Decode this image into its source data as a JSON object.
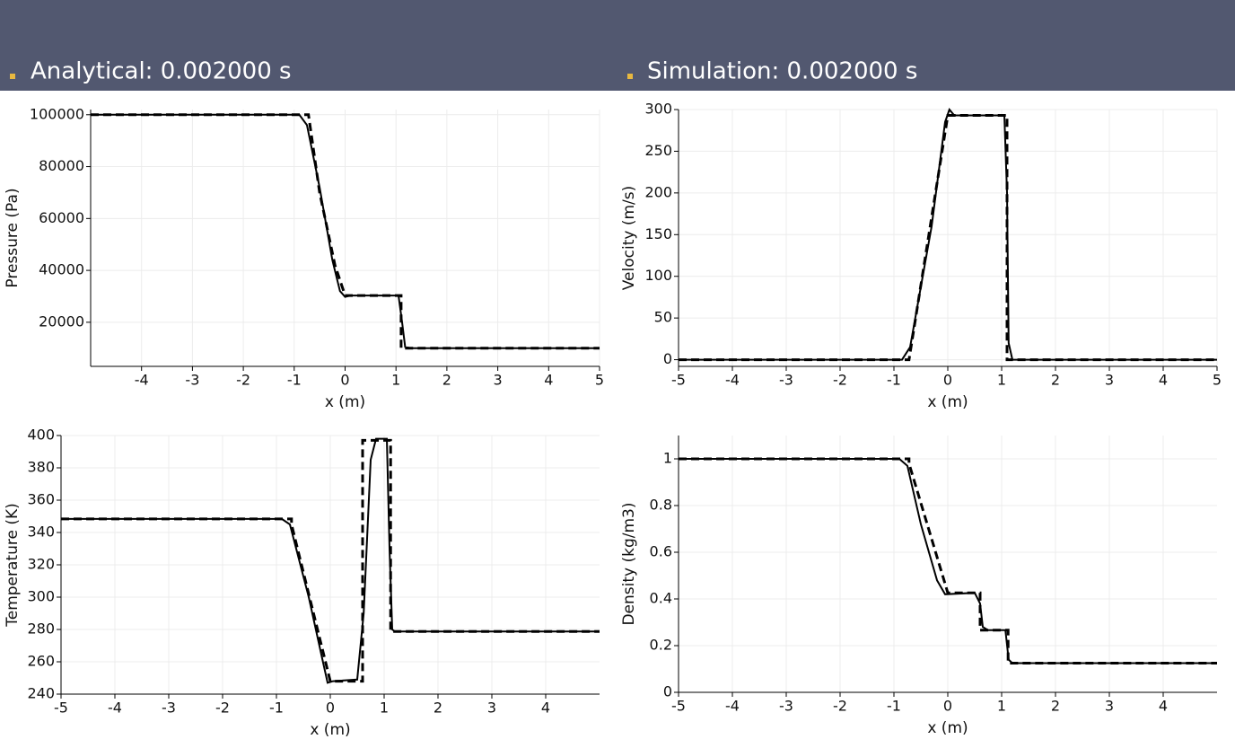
{
  "header": {
    "left": "Analytical: 0.002000 s",
    "right": "Simulation: 0.002000 s"
  },
  "chart_data": [
    {
      "type": "line",
      "xlabel": "x (m)",
      "ylabel": "Pressure (Pa)",
      "xlim": [
        -5,
        5
      ],
      "ylim": [
        3000,
        102000
      ],
      "xticks": [
        -4,
        -3,
        -2,
        -1,
        0,
        1,
        2,
        3,
        4,
        5
      ],
      "yticks": [
        20000,
        40000,
        60000,
        80000,
        100000
      ],
      "grid": true,
      "series": [
        {
          "color": "#000000",
          "dash": true,
          "x": [
            -5,
            -0.72,
            -0.5,
            -0.2,
            0,
            1.1,
            1.1,
            5
          ],
          "values": [
            100000,
            100000,
            70000,
            42000,
            30300,
            30300,
            10000,
            10000
          ]
        },
        {
          "color": "#000000",
          "dash": false,
          "x": [
            -5,
            -0.9,
            -0.75,
            -0.5,
            -0.25,
            -0.1,
            0,
            0.1,
            1.05,
            1.12,
            1.18,
            1.3,
            5
          ],
          "values": [
            100000,
            100000,
            96000,
            72000,
            44000,
            32000,
            29800,
            30300,
            30300,
            20000,
            10500,
            10000,
            10000
          ]
        }
      ]
    },
    {
      "type": "line",
      "xlabel": "x (m)",
      "ylabel": "Velocity (m/s)",
      "xlim": [
        -5,
        5
      ],
      "ylim": [
        -8,
        300
      ],
      "xticks": [
        -5,
        -4,
        -3,
        -2,
        -1,
        0,
        1,
        2,
        3,
        4,
        5
      ],
      "yticks": [
        0,
        50,
        100,
        150,
        200,
        250,
        300
      ],
      "grid": true,
      "series": [
        {
          "color": "#000000",
          "dash": true,
          "x": [
            -5,
            -0.72,
            0,
            1.1,
            1.1,
            5
          ],
          "values": [
            0,
            0,
            293,
            293,
            0,
            0
          ]
        },
        {
          "color": "#000000",
          "dash": false,
          "x": [
            -5,
            -0.85,
            -0.7,
            -0.3,
            -0.05,
            0.03,
            0.12,
            1.05,
            1.1,
            1.13,
            1.2,
            5
          ],
          "values": [
            0,
            0,
            15,
            160,
            285,
            300,
            293,
            293,
            200,
            20,
            0,
            0
          ]
        }
      ]
    },
    {
      "type": "line",
      "xlabel": "x (m)",
      "ylabel": "Temperature (K)",
      "xlim": [
        -5,
        5
      ],
      "ylim": [
        240,
        400
      ],
      "xticks": [
        -5,
        -4,
        -3,
        -2,
        -1,
        0,
        1,
        2,
        3,
        4
      ],
      "yticks": [
        240,
        260,
        280,
        300,
        320,
        340,
        360,
        380,
        400
      ],
      "grid": true,
      "series": [
        {
          "color": "#000000",
          "dash": true,
          "x": [
            -5,
            -0.72,
            -0.72,
            0,
            0.6,
            0.6,
            1.12,
            1.12,
            5
          ],
          "values": [
            348.4,
            348.4,
            345,
            248,
            248,
            397,
            397,
            278.7,
            278.7
          ]
        },
        {
          "color": "#000000",
          "dash": false,
          "x": [
            -5,
            -0.9,
            -0.75,
            -0.4,
            -0.15,
            -0.05,
            0.05,
            0.5,
            0.62,
            0.75,
            0.85,
            1.05,
            1.1,
            1.15,
            1.2,
            5
          ],
          "values": [
            348.4,
            348.4,
            345,
            300,
            262,
            247,
            248,
            249,
            290,
            385,
            398,
            398,
            330,
            280,
            278.7,
            278.7
          ]
        }
      ]
    },
    {
      "type": "line",
      "xlabel": "x (m)",
      "ylabel": "Density (kg/m3)",
      "xlim": [
        -5,
        5
      ],
      "ylim": [
        0,
        1.1
      ],
      "xticks": [
        -5,
        -4,
        -3,
        -2,
        -1,
        0,
        1,
        2,
        3,
        4
      ],
      "yticks": [
        0,
        0.2,
        0.4,
        0.6,
        0.8,
        1
      ],
      "grid": true,
      "series": [
        {
          "color": "#000000",
          "dash": true,
          "x": [
            -5,
            -0.72,
            -0.72,
            0,
            0.6,
            0.6,
            1.12,
            1.12,
            5
          ],
          "values": [
            1,
            1,
            0.98,
            0.426,
            0.426,
            0.266,
            0.266,
            0.125,
            0.125
          ]
        },
        {
          "color": "#000000",
          "dash": false,
          "x": [
            -5,
            -0.9,
            -0.75,
            -0.5,
            -0.2,
            -0.05,
            0.5,
            0.6,
            0.65,
            0.75,
            1.07,
            1.13,
            1.2,
            5
          ],
          "values": [
            1,
            1,
            0.97,
            0.72,
            0.48,
            0.42,
            0.426,
            0.38,
            0.28,
            0.266,
            0.266,
            0.14,
            0.125,
            0.125
          ]
        }
      ]
    }
  ]
}
